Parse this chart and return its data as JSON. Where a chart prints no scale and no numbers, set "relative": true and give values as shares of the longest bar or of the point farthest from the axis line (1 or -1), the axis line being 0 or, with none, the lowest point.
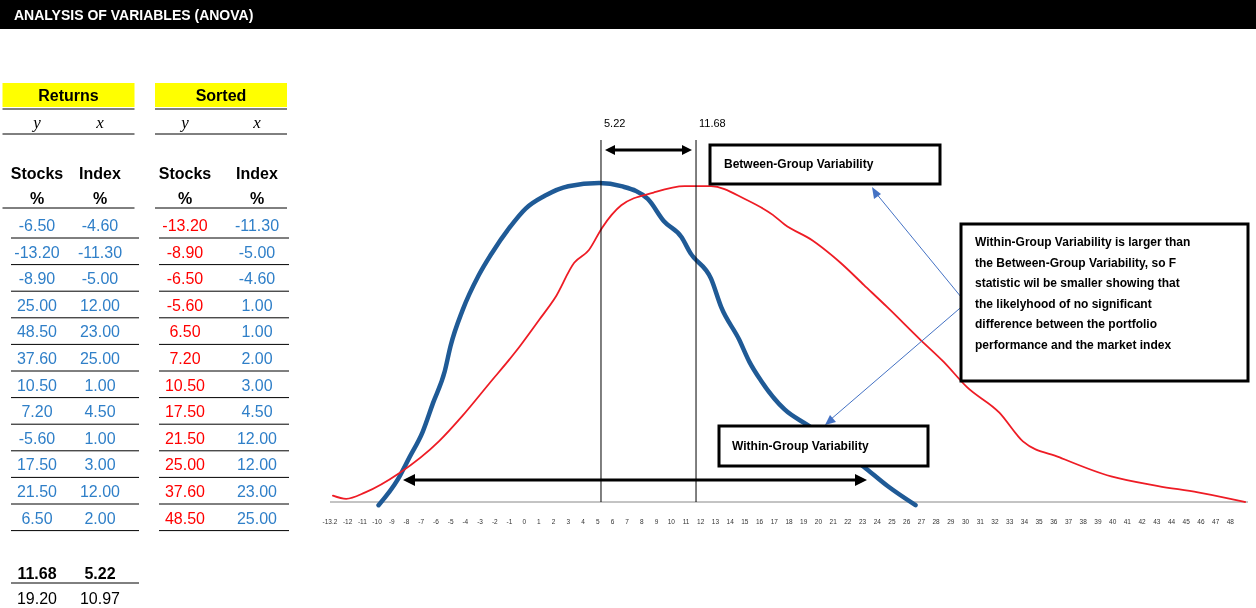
{
  "chart_data": [
    {
      "type": "other",
      "title": "ANALYSIS OF VARIABLES (ANOVA)",
      "annotations": [
        "Returns",
        "Sorted",
        "y",
        "x",
        "y",
        "x",
        "Stocks",
        "Index",
        "Stocks",
        "Index",
        "%",
        "%",
        "%",
        "%",
        "-6.50",
        "-4.60",
        "-13.20",
        "-11.30",
        "-13.20",
        "-11.30",
        "-8.90",
        "-5.00",
        "-8.90",
        "-5.00",
        "-6.50",
        "-4.60",
        "25.00",
        "12.00",
        "-5.60",
        "1.00",
        "48.50",
        "23.00",
        "6.50",
        "1.00",
        "37.60",
        "25.00",
        "7.20",
        "2.00",
        "10.50",
        "1.00",
        "10.50",
        "3.00",
        "7.20",
        "4.50",
        "17.50",
        "4.50",
        "-5.60",
        "1.00",
        "21.50",
        "12.00",
        "17.50",
        "3.00",
        "25.00",
        "12.00",
        "21.50",
        "12.00",
        "37.60",
        "23.00",
        "6.50",
        "2.00",
        "48.50",
        "25.00",
        "11.68",
        "5.22",
        "19.20",
        "10.97"
      ]
    },
    {
      "type": "line",
      "relative": true,
      "xlim": [
        -13.2,
        49.2
      ],
      "xticks": [
        {
          "value": -13.2,
          "label": "-13.2"
        },
        -12,
        -11,
        -10,
        -9,
        -8,
        -7,
        -6,
        -5,
        -4,
        -3,
        -2,
        -1,
        0,
        1,
        2,
        3,
        4,
        5,
        6,
        7,
        8,
        9,
        10,
        11,
        12,
        13,
        14,
        15,
        16,
        17,
        18,
        19,
        20,
        21,
        22,
        23,
        24,
        25,
        26,
        27,
        28,
        29,
        30,
        31,
        32,
        33,
        34,
        35,
        36,
        37,
        38,
        39,
        40,
        41,
        42,
        43,
        44,
        45,
        46,
        47,
        48
      ],
      "series": [
        {
          "color": "#1f5a96",
          "x": [
            -9.9,
            -8.6,
            -7.8,
            -6.9,
            -6.2,
            -5.4,
            -5.0,
            -4.2,
            -3.1,
            -2.2,
            -1.0,
            0.1,
            1.4,
            3.0,
            5.1,
            6.6,
            8.4,
            9.5,
            10.7,
            11.3,
            12.7,
            13.4,
            14.6,
            15.3,
            16.1,
            17.7,
            19.3,
            23.1,
            24.7,
            26.6
          ],
          "values": [
            -0.01,
            0.07,
            0.14,
            0.22,
            0.31,
            0.41,
            0.49,
            0.6,
            0.71,
            0.78,
            0.86,
            0.92,
            0.96,
            0.99,
            1,
            0.99,
            0.95,
            0.88,
            0.83,
            0.78,
            0.7,
            0.61,
            0.51,
            0.44,
            0.38,
            0.29,
            0.24,
            0.11,
            0.05,
            -0.01
          ]
        },
        {
          "color": "#ee1c25",
          "x": [
            -13.0,
            -12.1,
            -10.8,
            -8.5,
            -5.8,
            -4.2,
            -2.4,
            -0.6,
            1.0,
            2.1,
            3.4,
            4.4,
            5.3,
            6.6,
            8.8,
            10.9,
            12.7,
            15.0,
            16.9,
            17.7,
            19.6,
            21.5,
            23.1,
            24.7,
            26.9,
            28.5,
            30.1,
            32.3,
            33.9,
            36.4,
            39.9,
            43.1,
            45.8,
            48.0,
            49.0
          ],
          "values": [
            0.02,
            0.01,
            0.03,
            0.09,
            0.19,
            0.27,
            0.37,
            0.47,
            0.57,
            0.64,
            0.75,
            0.79,
            0.86,
            0.93,
            0.97,
            0.99,
            0.99,
            0.95,
            0.9,
            0.87,
            0.82,
            0.75,
            0.68,
            0.61,
            0.51,
            0.44,
            0.36,
            0.28,
            0.19,
            0.14,
            0.08,
            0.05,
            0.03,
            0.01,
            0.0
          ]
        }
      ],
      "ref_lines": [
        {
          "axis": "x",
          "value": 5.22,
          "label": "5.22"
        },
        {
          "axis": "x",
          "value": 11.68,
          "label": "11.68"
        }
      ],
      "annotations": [
        "Between-Group Variability",
        "Within-Group Variability",
        "Within-Group Variability is larger than the Between-Group Variability, so F statistic wil be smaller showing that the likelyhood of no significant difference between the portfolio performance and the market index"
      ]
    }
  ]
}
